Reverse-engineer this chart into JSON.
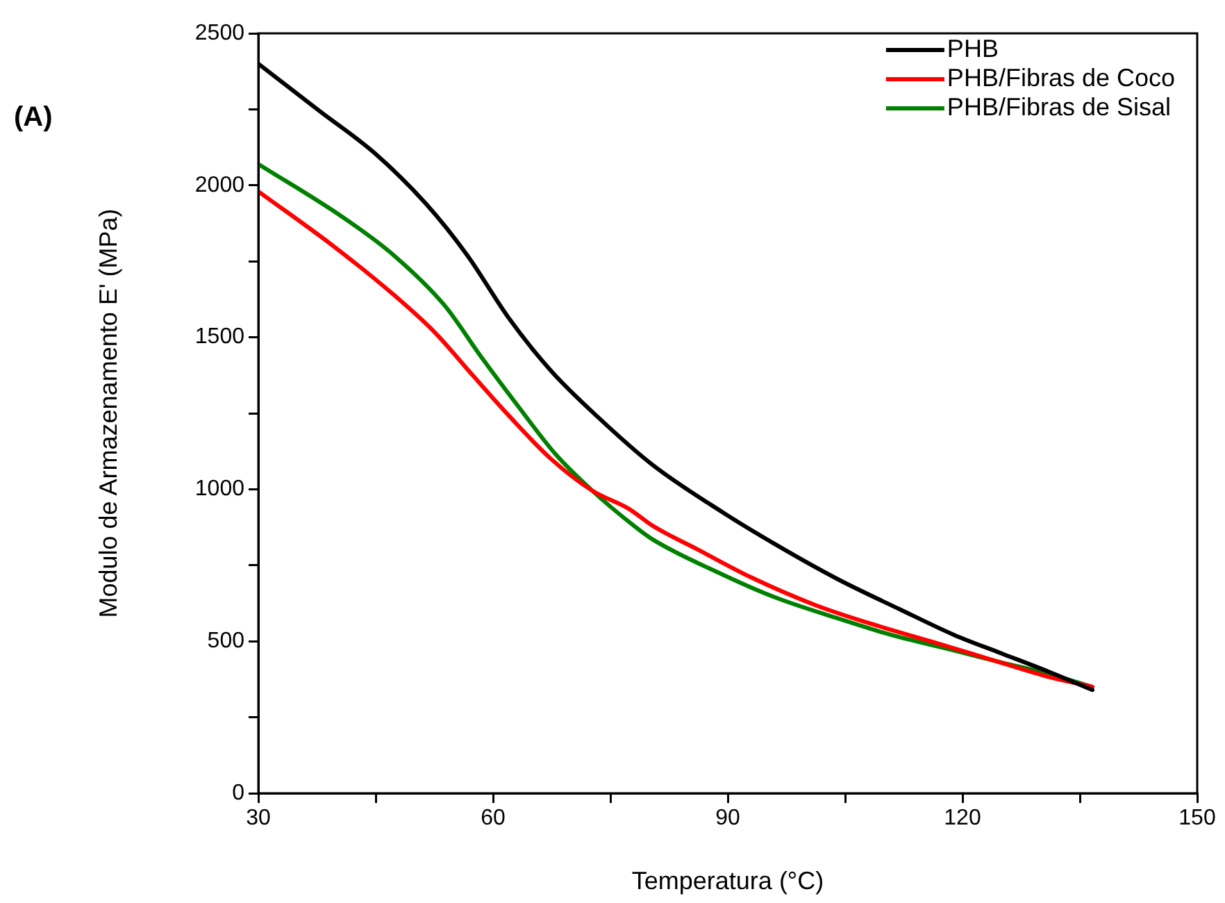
{
  "chart_data": {
    "type": "line",
    "title": "(A)",
    "xlabel": "Temperatura (°C)",
    "ylabel": "Modulo de Armazenamento E' (MPa)",
    "xlim": [
      30,
      150
    ],
    "xticks": [
      30,
      {
        "value": 45,
        "label": null
      },
      60,
      {
        "value": 75,
        "label": null
      },
      90,
      {
        "value": 105,
        "label": null
      },
      120,
      {
        "value": 135,
        "label": null
      },
      150
    ],
    "ylim": [
      0,
      2500
    ],
    "yticks": [
      0,
      {
        "value": 250,
        "label": null
      },
      500,
      {
        "value": 750,
        "label": null
      },
      1000,
      {
        "value": 1250,
        "label": null
      },
      1500,
      {
        "value": 1750,
        "label": null
      },
      2000,
      {
        "value": 2250,
        "label": null
      },
      2500
    ],
    "grid": false,
    "legend": "top right",
    "marker": "none",
    "line_style": "solid",
    "series": [
      {
        "name": "PHB",
        "color": "#000000",
        "x": [
          30,
          37.8,
          44.9,
          51.4,
          56.7,
          62.1,
          67.4,
          73.3,
          80.4,
          89.3,
          96,
          104,
          112,
          119,
          125,
          131,
          136.6
        ],
        "values": [
          2400,
          2245,
          2105,
          1940,
          1770,
          1560,
          1390,
          1240,
          1080,
          925,
          820,
          705,
          605,
          520,
          460,
          400,
          340
        ]
      },
      {
        "name": "PHB/Fibras de Coco",
        "color": "#ff0000",
        "x": [
          30,
          39.6,
          47.3,
          52.6,
          57.4,
          62.1,
          67.4,
          72.7,
          77.4,
          80.4,
          86.3,
          93,
          101.1,
          108,
          115.9,
          123,
          130.7,
          136.6
        ],
        "values": [
          1980,
          1800,
          1640,
          1515,
          1375,
          1240,
          1100,
          995,
          935,
          880,
          800,
          710,
          620,
          560,
          500,
          445,
          385,
          350
        ]
      },
      {
        "name": "PHB/Fibras de Sisal",
        "color": "#008000",
        "x": [
          30,
          40.8,
          47.3,
          53.8,
          58.5,
          63.3,
          68,
          72.7,
          78,
          80.4,
          89.3,
          96,
          104.1,
          111,
          118.9,
          125,
          130.7,
          136.6
        ],
        "values": [
          2070,
          1895,
          1770,
          1605,
          1435,
          1270,
          1115,
          995,
          880,
          835,
          720,
          645,
          575,
          520,
          470,
          430,
          395,
          350
        ]
      }
    ]
  }
}
